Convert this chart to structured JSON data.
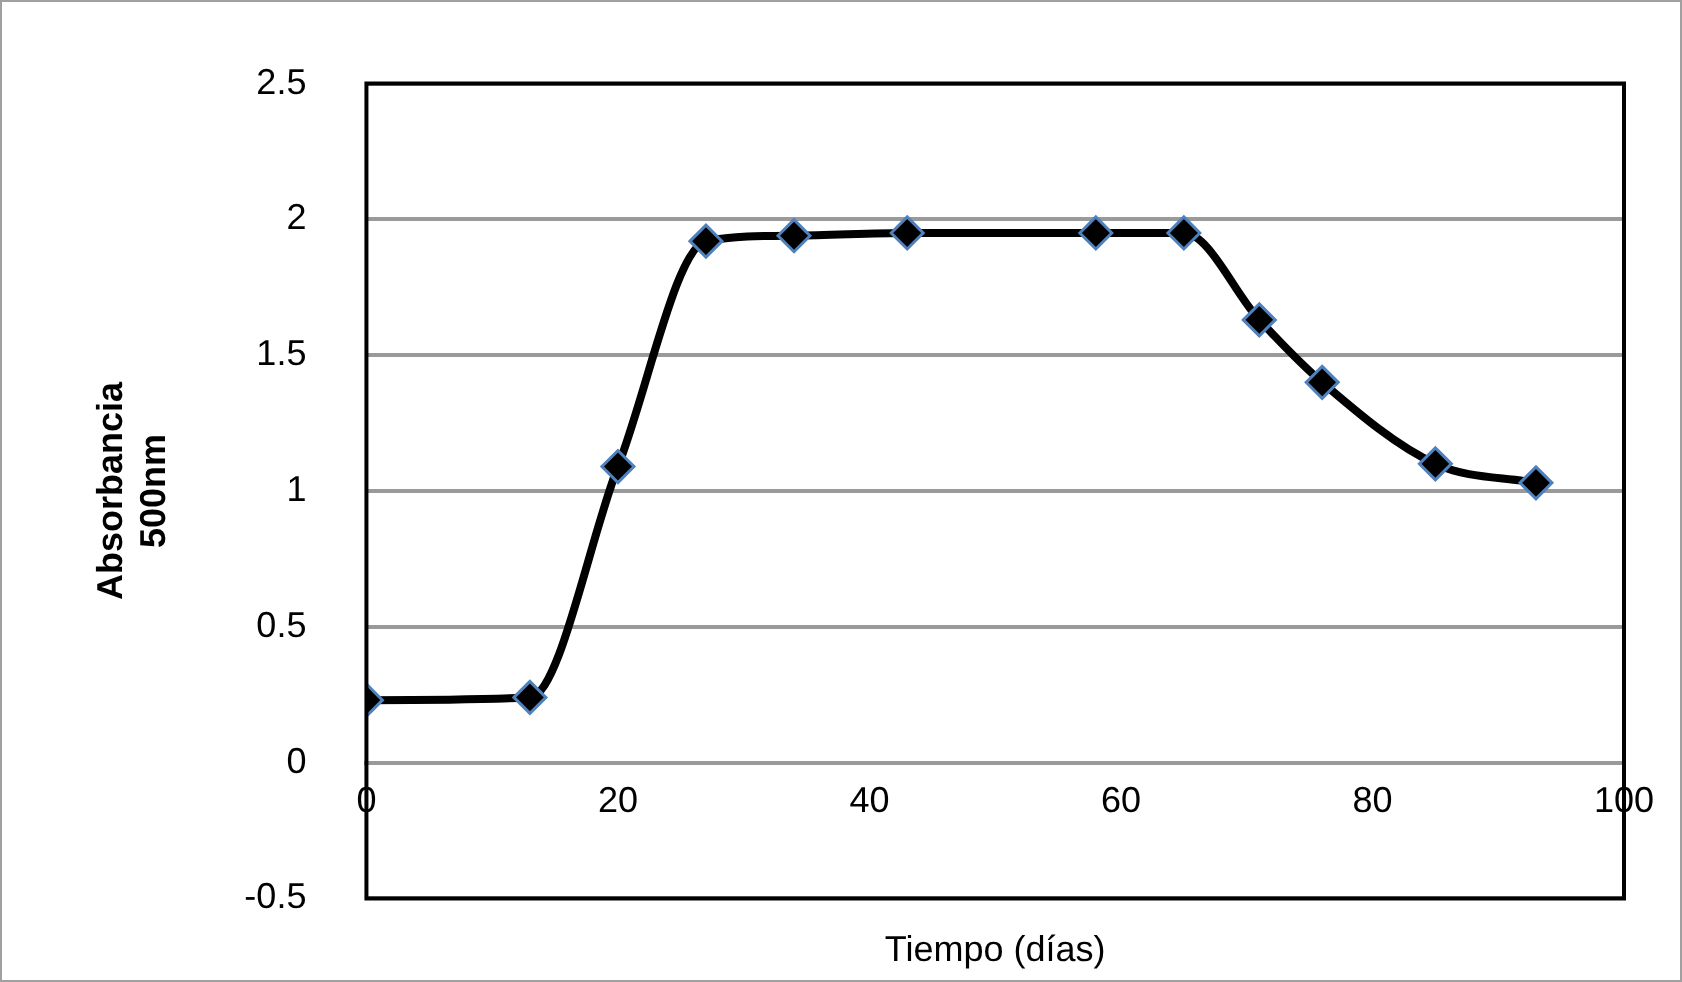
{
  "chart_data": {
    "type": "line",
    "xlabel": "Tiempo (días)",
    "ylabel": "Absorbancia\n500nm",
    "x": [
      0,
      13,
      20,
      27,
      34,
      43,
      58,
      65,
      71,
      76,
      85,
      93
    ],
    "series": [
      {
        "color": "#000000",
        "values": [
          0.23,
          0.24,
          1.09,
          1.92,
          1.94,
          1.95,
          1.95,
          1.95,
          1.63,
          1.4,
          1.1,
          1.03
        ]
      }
    ],
    "xlim": [
      0,
      100
    ],
    "xticks": [
      0,
      20,
      40,
      60,
      80,
      100
    ],
    "ylim": [
      -0.5,
      2.5
    ],
    "yticks": [
      -0.5,
      0,
      0.5,
      1,
      1.5,
      2,
      2.5
    ],
    "grid": "y",
    "legend": false,
    "marker": "diamond",
    "line_style": "solid"
  }
}
